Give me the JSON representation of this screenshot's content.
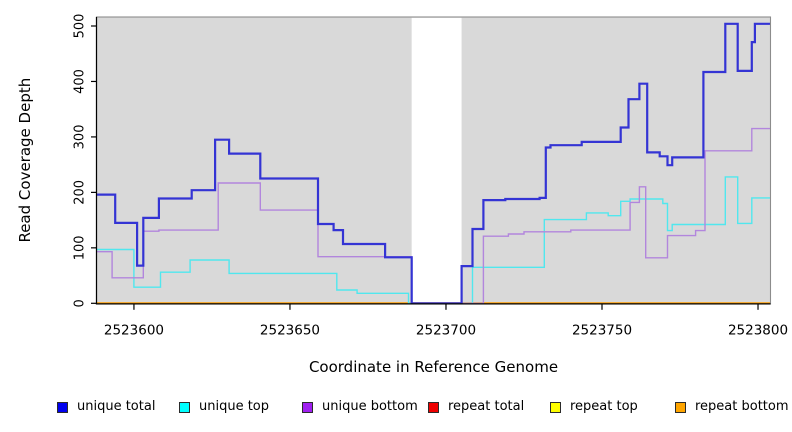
{
  "figure": {
    "title": "",
    "xlabel": "Coordinate in Reference Genome",
    "ylabel": "Read Coverage Depth"
  },
  "chart_data": {
    "type": "line",
    "subtype": "step",
    "title": "",
    "xlabel": "Coordinate in Reference Genome",
    "ylabel": "Read Coverage Depth",
    "xlim": [
      2523588,
      2523804
    ],
    "ylim": [
      0,
      500
    ],
    "grid": false,
    "legend_position": "bottom",
    "plot_background": "#d9d9d9",
    "outer_background": "#ffffff",
    "no_data_gap": {
      "x0": 2523689,
      "x1": 2523705,
      "color": "#ffffff"
    },
    "xticks": {
      "values": [
        2523600,
        2523650,
        2523700,
        2523750,
        2523800
      ],
      "labels": [
        "2523600",
        "2523650",
        "2523700",
        "2523750",
        "2523800"
      ]
    },
    "yticks": {
      "values": [
        0,
        100,
        200,
        300,
        400,
        500
      ],
      "labels": [
        "0",
        "100",
        "200",
        "300",
        "400",
        "500"
      ]
    },
    "series": [
      {
        "name": "unique total",
        "legend_color": "#0000ee",
        "line_color": "#3434d4",
        "line_width": 2.2,
        "z": 5,
        "points": [
          [
            2523588,
            196
          ],
          [
            2523594,
            145
          ],
          [
            2523601,
            68
          ],
          [
            2523603,
            154
          ],
          [
            2523608,
            189
          ],
          [
            2523618.5,
            204
          ],
          [
            2523626,
            295
          ],
          [
            2523630.5,
            270
          ],
          [
            2523640.5,
            225
          ],
          [
            2523659,
            143
          ],
          [
            2523664,
            132
          ],
          [
            2523667,
            107
          ],
          [
            2523680.5,
            83
          ],
          [
            2523689,
            0
          ],
          [
            2523705,
            67
          ],
          [
            2523708.5,
            134
          ],
          [
            2523712,
            186
          ],
          [
            2523719,
            188
          ],
          [
            2523730,
            190
          ],
          [
            2523732,
            281
          ],
          [
            2523733.5,
            285
          ],
          [
            2523743.5,
            291
          ],
          [
            2523756,
            317
          ],
          [
            2523758.5,
            368
          ],
          [
            2523762,
            396
          ],
          [
            2523764.5,
            272
          ],
          [
            2523768.5,
            265
          ],
          [
            2523771,
            249
          ],
          [
            2523772.5,
            263
          ],
          [
            2523782.5,
            417
          ],
          [
            2523789.5,
            504
          ],
          [
            2523793.5,
            419
          ],
          [
            2523798,
            471
          ],
          [
            2523799,
            504
          ]
        ]
      },
      {
        "name": "unique top",
        "legend_color": "#00ffff",
        "line_color": "#50e7ee",
        "line_width": 1.4,
        "z": 3,
        "points": [
          [
            2523588,
            97
          ],
          [
            2523600,
            29
          ],
          [
            2523608.5,
            56
          ],
          [
            2523618,
            78
          ],
          [
            2523630.5,
            54
          ],
          [
            2523665,
            24
          ],
          [
            2523671.5,
            18
          ],
          [
            2523688,
            0
          ],
          [
            2523708.5,
            65
          ],
          [
            2523731.5,
            151
          ],
          [
            2523745,
            163
          ],
          [
            2523752,
            158
          ],
          [
            2523756,
            184
          ],
          [
            2523759,
            188
          ],
          [
            2523769.5,
            180
          ],
          [
            2523771,
            131
          ],
          [
            2523772.5,
            142
          ],
          [
            2523789.5,
            228
          ],
          [
            2523793.5,
            144
          ],
          [
            2523798,
            190
          ]
        ]
      },
      {
        "name": "unique bottom",
        "legend_color": "#a020f0",
        "line_color": "#b286dd",
        "line_width": 1.4,
        "z": 4,
        "points": [
          [
            2523588,
            93
          ],
          [
            2523593,
            46
          ],
          [
            2523603,
            130
          ],
          [
            2523608,
            132
          ],
          [
            2523627,
            217
          ],
          [
            2523640.5,
            168
          ],
          [
            2523659,
            84
          ],
          [
            2523689,
            0
          ],
          [
            2523712,
            121
          ],
          [
            2523720,
            125
          ],
          [
            2523725,
            129
          ],
          [
            2523740,
            132
          ],
          [
            2523759,
            182
          ],
          [
            2523762,
            210
          ],
          [
            2523764,
            82
          ],
          [
            2523771,
            122
          ],
          [
            2523780,
            131
          ],
          [
            2523783,
            275
          ],
          [
            2523798,
            315
          ]
        ]
      },
      {
        "name": "repeat total",
        "legend_color": "#ee0000",
        "line_color": "#d40000",
        "line_width": 1.4,
        "z": 0,
        "points": [
          [
            2523588,
            0
          ]
        ]
      },
      {
        "name": "repeat top",
        "legend_color": "#ffff00",
        "line_color": "#ffff00",
        "line_width": 1.4,
        "z": 1,
        "points": [
          [
            2523588,
            0
          ]
        ]
      },
      {
        "name": "repeat bottom",
        "legend_color": "#ffa500",
        "line_color": "#ff9e00",
        "line_width": 2,
        "z": 2,
        "points": [
          [
            2523588,
            0
          ]
        ]
      }
    ]
  }
}
